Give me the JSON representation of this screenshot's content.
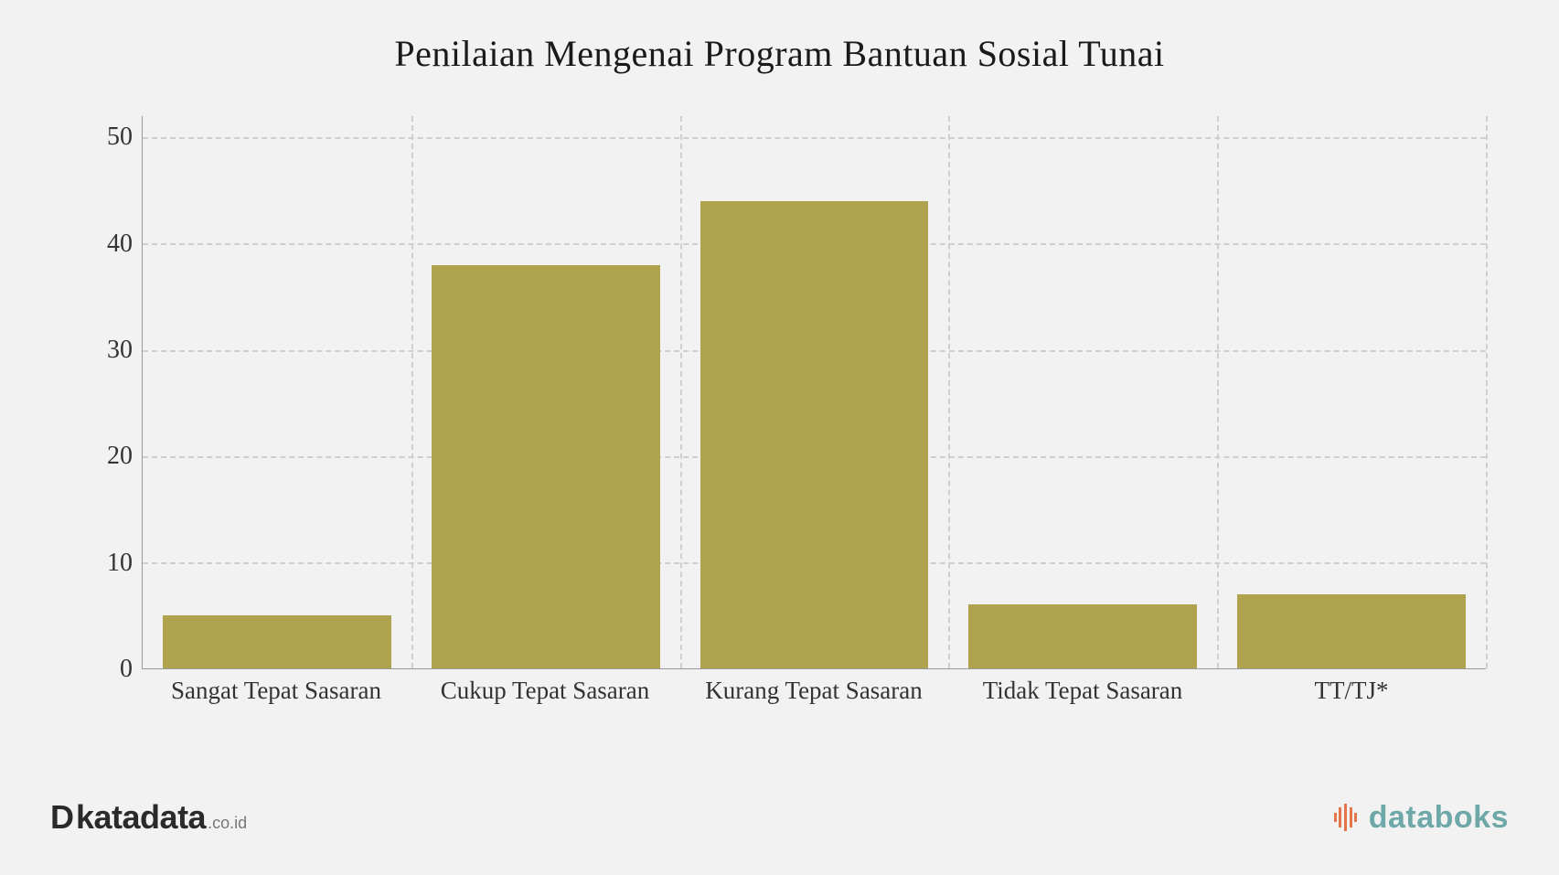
{
  "chart": {
    "type": "bar",
    "title": "Penilaian Mengenai Program Bantuan Sosial Tunai",
    "title_fontsize": 40,
    "title_color": "#1a1a1a",
    "background_color": "#f2f2f2",
    "bar_color": "#b0a350",
    "grid_color": "#cfcfcf",
    "grid_dash": "dashed",
    "axis_color": "#999999",
    "label_color": "#333333",
    "label_fontsize": 28,
    "xlabel_fontsize": 27,
    "font_family": "Georgia, serif",
    "ylim": [
      0,
      52
    ],
    "yticks": [
      0,
      10,
      20,
      30,
      40,
      50
    ],
    "bar_width_ratio": 0.85,
    "categories": [
      "Sangat Tepat Sasaran",
      "Cukup Tepat Sasaran",
      "Kurang Tepat Sasaran",
      "Tidak Tepat Sasaran",
      "TT/TJ*"
    ],
    "values": [
      5,
      38,
      44,
      6,
      7
    ]
  },
  "footer": {
    "katadata": {
      "icon": "D",
      "main": "katadata",
      "suffix": ".co.id",
      "color": "#2a2a2a"
    },
    "databoks": {
      "text": "databoks",
      "color": "#6fa8a8",
      "icon_accent": "#e57449"
    }
  }
}
